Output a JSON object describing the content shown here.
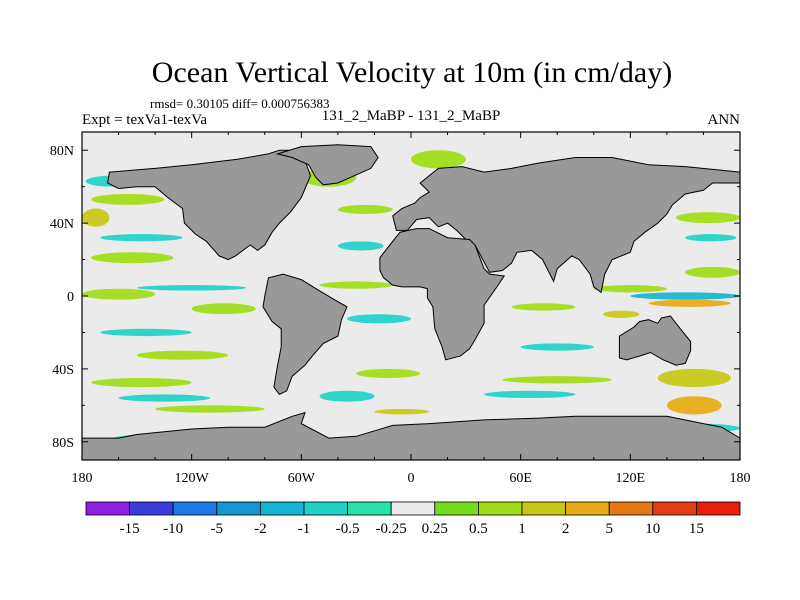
{
  "chart_data": {
    "type": "heatmap",
    "title": "Ocean Vertical Velocity at 10m (in cm/day)",
    "stats_line": "rmsd= 0.30105 diff= 0.000756383",
    "left_label": "Expt = texVa1-texVa",
    "center_label": "131_2_MaBP - 131_2_MaBP",
    "right_label": "ANN",
    "x_ticks": [
      {
        "value": -180,
        "label": "180"
      },
      {
        "value": -120,
        "label": "120W"
      },
      {
        "value": -60,
        "label": "60W"
      },
      {
        "value": 0,
        "label": "0"
      },
      {
        "value": 60,
        "label": "60E"
      },
      {
        "value": 120,
        "label": "120E"
      },
      {
        "value": 180,
        "label": "180"
      }
    ],
    "y_ticks": [
      {
        "value": 80,
        "label": "80N"
      },
      {
        "value": 40,
        "label": "40N"
      },
      {
        "value": 0,
        "label": "0"
      },
      {
        "value": -40,
        "label": "40S"
      },
      {
        "value": -80,
        "label": "80S"
      }
    ],
    "xlim": [
      -180,
      180
    ],
    "ylim": [
      -90,
      90
    ],
    "land_color": "#999999",
    "ocean_background": "#ebebeb",
    "colorbar": {
      "labels": [
        "-15",
        "-10",
        "-5",
        "-2",
        "-1",
        "-0.5",
        "-0.25",
        "0.25",
        "0.5",
        "1",
        "2",
        "5",
        "10",
        "15"
      ],
      "colors": [
        "#8c1ee6",
        "#3c3cdc",
        "#1e78e6",
        "#1496d2",
        "#14b4d2",
        "#1ed2c8",
        "#28e1aa",
        "#ebebeb",
        "#78dc1e",
        "#a0dc14",
        "#c8c814",
        "#e6aa14",
        "#e67814",
        "#e63c14",
        "#e61e0a"
      ]
    },
    "continents": [
      {
        "name": "North America",
        "polygon": [
          [
            -165,
            68
          ],
          [
            -140,
            70
          ],
          [
            -120,
            72
          ],
          [
            -95,
            75
          ],
          [
            -78,
            78
          ],
          [
            -72,
            80
          ],
          [
            -60,
            80
          ],
          [
            -55,
            66
          ],
          [
            -60,
            54
          ],
          [
            -66,
            46
          ],
          [
            -72,
            40
          ],
          [
            -76,
            35
          ],
          [
            -80,
            28
          ],
          [
            -84,
            25
          ],
          [
            -88,
            28
          ],
          [
            -96,
            22
          ],
          [
            -100,
            20
          ],
          [
            -105,
            22
          ],
          [
            -112,
            30
          ],
          [
            -118,
            34
          ],
          [
            -124,
            40
          ],
          [
            -125,
            48
          ],
          [
            -133,
            54
          ],
          [
            -140,
            60
          ],
          [
            -150,
            60
          ],
          [
            -160,
            59
          ],
          [
            -166,
            62
          ]
        ]
      },
      {
        "name": "South America",
        "polygon": [
          [
            -78,
            10
          ],
          [
            -70,
            12
          ],
          [
            -60,
            9
          ],
          [
            -52,
            4
          ],
          [
            -42,
            -2
          ],
          [
            -35,
            -6
          ],
          [
            -38,
            -13
          ],
          [
            -40,
            -22
          ],
          [
            -48,
            -26
          ],
          [
            -54,
            -33
          ],
          [
            -58,
            -38
          ],
          [
            -65,
            -44
          ],
          [
            -68,
            -52
          ],
          [
            -72,
            -54
          ],
          [
            -75,
            -50
          ],
          [
            -73,
            -38
          ],
          [
            -71,
            -28
          ],
          [
            -71,
            -18
          ],
          [
            -76,
            -14
          ],
          [
            -81,
            -6
          ],
          [
            -80,
            0
          ]
        ]
      },
      {
        "name": "Eurasia",
        "polygon": [
          [
            -8,
            36
          ],
          [
            -10,
            44
          ],
          [
            -5,
            48
          ],
          [
            2,
            51
          ],
          [
            5,
            54
          ],
          [
            10,
            57
          ],
          [
            5,
            62
          ],
          [
            15,
            70
          ],
          [
            28,
            71
          ],
          [
            40,
            68
          ],
          [
            55,
            70
          ],
          [
            70,
            73
          ],
          [
            90,
            76
          ],
          [
            110,
            76
          ],
          [
            130,
            72
          ],
          [
            150,
            71
          ],
          [
            170,
            69
          ],
          [
            180,
            68
          ],
          [
            180,
            62
          ],
          [
            165,
            62
          ],
          [
            160,
            58
          ],
          [
            150,
            56
          ],
          [
            143,
            50
          ],
          [
            140,
            45
          ],
          [
            135,
            40
          ],
          [
            128,
            35
          ],
          [
            122,
            30
          ],
          [
            120,
            24
          ],
          [
            110,
            20
          ],
          [
            106,
            12
          ],
          [
            104,
            2
          ],
          [
            100,
            5
          ],
          [
            98,
            12
          ],
          [
            92,
            20
          ],
          [
            88,
            22
          ],
          [
            80,
            15
          ],
          [
            78,
            8
          ],
          [
            72,
            20
          ],
          [
            66,
            25
          ],
          [
            58,
            24
          ],
          [
            55,
            18
          ],
          [
            50,
            14
          ],
          [
            43,
            13
          ],
          [
            35,
            28
          ],
          [
            30,
            31
          ],
          [
            25,
            36
          ],
          [
            20,
            40
          ],
          [
            15,
            38
          ],
          [
            10,
            43
          ],
          [
            3,
            42
          ],
          [
            -2,
            36
          ]
        ]
      },
      {
        "name": "Africa",
        "polygon": [
          [
            -17,
            14
          ],
          [
            -17,
            21
          ],
          [
            -10,
            30
          ],
          [
            -6,
            35
          ],
          [
            3,
            37
          ],
          [
            10,
            37
          ],
          [
            20,
            32
          ],
          [
            32,
            31
          ],
          [
            35,
            28
          ],
          [
            40,
            15
          ],
          [
            43,
            12
          ],
          [
            51,
            11
          ],
          [
            47,
            5
          ],
          [
            40,
            -5
          ],
          [
            40,
            -15
          ],
          [
            35,
            -24
          ],
          [
            32,
            -29
          ],
          [
            27,
            -33
          ],
          [
            19,
            -35
          ],
          [
            17,
            -28
          ],
          [
            13,
            -18
          ],
          [
            12,
            -6
          ],
          [
            9,
            -1
          ],
          [
            9,
            4
          ],
          [
            5,
            5
          ],
          [
            -5,
            5
          ],
          [
            -10,
            6
          ],
          [
            -15,
            10
          ]
        ]
      },
      {
        "name": "Australia",
        "polygon": [
          [
            114,
            -22
          ],
          [
            114,
            -34
          ],
          [
            118,
            -35
          ],
          [
            125,
            -33
          ],
          [
            131,
            -31
          ],
          [
            138,
            -35
          ],
          [
            145,
            -38
          ],
          [
            150,
            -37
          ],
          [
            153,
            -30
          ],
          [
            153,
            -25
          ],
          [
            145,
            -15
          ],
          [
            142,
            -11
          ],
          [
            137,
            -12
          ],
          [
            135,
            -15
          ],
          [
            130,
            -13
          ],
          [
            125,
            -14
          ],
          [
            122,
            -17
          ]
        ]
      },
      {
        "name": "Greenland",
        "polygon": [
          [
            -73,
            78
          ],
          [
            -60,
            82
          ],
          [
            -40,
            83
          ],
          [
            -22,
            82
          ],
          [
            -18,
            76
          ],
          [
            -22,
            70
          ],
          [
            -40,
            62
          ],
          [
            -48,
            61
          ],
          [
            -52,
            65
          ],
          [
            -56,
            72
          ],
          [
            -65,
            76
          ]
        ]
      },
      {
        "name": "Antarctica",
        "polygon": [
          [
            -180,
            -90
          ],
          [
            -180,
            -78
          ],
          [
            -160,
            -78
          ],
          [
            -150,
            -76
          ],
          [
            -120,
            -73
          ],
          [
            -100,
            -72
          ],
          [
            -80,
            -72
          ],
          [
            -65,
            -66
          ],
          [
            -58,
            -64
          ],
          [
            -60,
            -70
          ],
          [
            -45,
            -78
          ],
          [
            -30,
            -77
          ],
          [
            -10,
            -71
          ],
          [
            10,
            -70
          ],
          [
            40,
            -68
          ],
          [
            70,
            -67
          ],
          [
            90,
            -66
          ],
          [
            120,
            -66
          ],
          [
            140,
            -66
          ],
          [
            160,
            -70
          ],
          [
            170,
            -72
          ],
          [
            180,
            -78
          ],
          [
            180,
            -90
          ]
        ]
      }
    ],
    "anomaly_bands": [
      {
        "lon": [
          -180,
          -140
        ],
        "lat": [
          -2,
          4
        ],
        "level": "0.5"
      },
      {
        "lon": [
          -150,
          -90
        ],
        "lat": [
          3,
          6
        ],
        "level": "-0.5"
      },
      {
        "lon": [
          -120,
          -85
        ],
        "lat": [
          -10,
          -4
        ],
        "level": "0.5"
      },
      {
        "lon": [
          -175,
          -130
        ],
        "lat": [
          18,
          24
        ],
        "level": "0.5"
      },
      {
        "lon": [
          -170,
          -125
        ],
        "lat": [
          30,
          34
        ],
        "level": "-0.5"
      },
      {
        "lon": [
          -175,
          -135
        ],
        "lat": [
          50,
          56
        ],
        "level": "0.5"
      },
      {
        "lon": [
          -178,
          -150
        ],
        "lat": [
          60,
          66
        ],
        "level": "-0.5"
      },
      {
        "lon": [
          -170,
          -120
        ],
        "lat": [
          -22,
          -18
        ],
        "level": "-0.5"
      },
      {
        "lon": [
          -150,
          -100
        ],
        "lat": [
          -35,
          -30
        ],
        "level": "0.5"
      },
      {
        "lon": [
          -175,
          -120
        ],
        "lat": [
          -50,
          -45
        ],
        "level": "0.5"
      },
      {
        "lon": [
          -160,
          -110
        ],
        "lat": [
          -58,
          -54
        ],
        "level": "-0.5"
      },
      {
        "lon": [
          -140,
          -80
        ],
        "lat": [
          -64,
          -60
        ],
        "level": "0.5"
      },
      {
        "lon": [
          -50,
          -10
        ],
        "lat": [
          4,
          8
        ],
        "level": "0.5"
      },
      {
        "lon": [
          -40,
          -15
        ],
        "lat": [
          25,
          30
        ],
        "level": "-0.5"
      },
      {
        "lon": [
          -40,
          -10
        ],
        "lat": [
          45,
          50
        ],
        "level": "0.5"
      },
      {
        "lon": [
          -35,
          0
        ],
        "lat": [
          -15,
          -10
        ],
        "level": "-0.5"
      },
      {
        "lon": [
          -30,
          5
        ],
        "lat": [
          -45,
          -40
        ],
        "level": "0.5"
      },
      {
        "lon": [
          -50,
          -20
        ],
        "lat": [
          -58,
          -52
        ],
        "level": "-0.5"
      },
      {
        "lon": [
          -20,
          10
        ],
        "lat": [
          -65,
          -62
        ],
        "level": "1"
      },
      {
        "lon": [
          55,
          90
        ],
        "lat": [
          -8,
          -4
        ],
        "level": "0.5"
      },
      {
        "lon": [
          60,
          100
        ],
        "lat": [
          -30,
          -26
        ],
        "level": "-0.5"
      },
      {
        "lon": [
          50,
          110
        ],
        "lat": [
          -48,
          -44
        ],
        "level": "0.5"
      },
      {
        "lon": [
          40,
          90
        ],
        "lat": [
          -56,
          -52
        ],
        "level": "-0.5"
      },
      {
        "lon": [
          100,
          140
        ],
        "lat": [
          2,
          6
        ],
        "level": "0.5"
      },
      {
        "lon": [
          120,
          180
        ],
        "lat": [
          -2,
          2
        ],
        "level": "-1"
      },
      {
        "lon": [
          130,
          175
        ],
        "lat": [
          -6,
          -2
        ],
        "level": "2"
      },
      {
        "lon": [
          150,
          180
        ],
        "lat": [
          10,
          16
        ],
        "level": "0.5"
      },
      {
        "lon": [
          145,
          180
        ],
        "lat": [
          40,
          46
        ],
        "level": "0.5"
      },
      {
        "lon": [
          150,
          178
        ],
        "lat": [
          30,
          34
        ],
        "level": "-0.5"
      },
      {
        "lon": [
          135,
          175
        ],
        "lat": [
          -50,
          -40
        ],
        "level": "1"
      },
      {
        "lon": [
          140,
          170
        ],
        "lat": [
          -65,
          -55
        ],
        "level": "2"
      },
      {
        "lon": [
          145,
          165
        ],
        "lat": [
          -85,
          -80
        ],
        "level": "5"
      },
      {
        "lon": [
          130,
          180
        ],
        "lat": [
          -75,
          -70
        ],
        "level": "-0.5"
      },
      {
        "lon": [
          -165,
          -120
        ],
        "lat": [
          -82,
          -76
        ],
        "level": "-0.5"
      },
      {
        "lon": [
          -120,
          -70
        ],
        "lat": [
          -78,
          -74
        ],
        "level": "0.5"
      },
      {
        "lon": [
          -60,
          -30
        ],
        "lat": [
          60,
          70
        ],
        "level": "0.5"
      },
      {
        "lon": [
          0,
          30
        ],
        "lat": [
          70,
          80
        ],
        "level": "0.5"
      },
      {
        "lon": [
          -180,
          -165
        ],
        "lat": [
          38,
          48
        ],
        "level": "1"
      },
      {
        "lon": [
          105,
          125
        ],
        "lat": [
          -12,
          -8
        ],
        "level": "1"
      }
    ]
  }
}
